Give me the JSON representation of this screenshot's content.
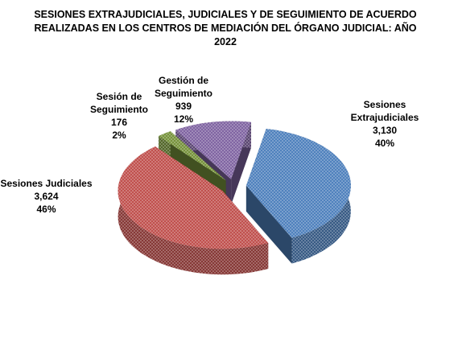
{
  "chart_data": {
    "type": "pie",
    "title": "SESIONES EXTRAJUDICIALES, JUDICIALES Y DE SEGUIMIENTO DE ACUERDO REALIZADAS EN LOS CENTROS DE MEDIACIÓN DEL ÓRGANO JUDICIAL: AÑO 2022",
    "categories": [
      "Sesiones Extrajudiciales",
      "Sesiones Judiciales",
      "Sesión de Seguimiento",
      "Gestión de Seguimiento"
    ],
    "values": [
      3130,
      3624,
      176,
      939
    ],
    "value_labels": [
      "3,130",
      "3,624",
      "176",
      "939"
    ],
    "percent_labels": [
      "40%",
      "46%",
      "2%",
      "12%"
    ],
    "colors": [
      "#4f81bd",
      "#c0504d",
      "#77933c",
      "#8064a2"
    ]
  }
}
